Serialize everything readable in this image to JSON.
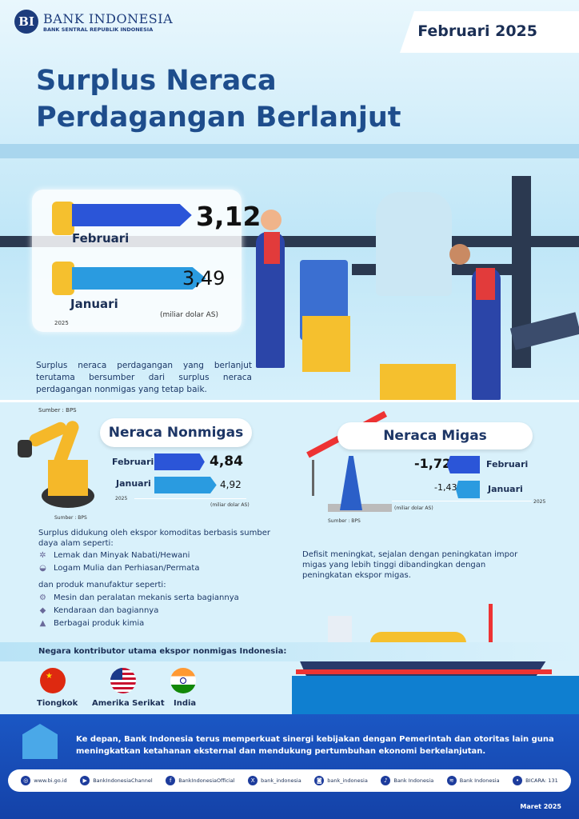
{
  "header": {
    "logo_name": "BANK INDONESIA",
    "logo_sub": "BANK SENTRAL REPUBLIK INDONESIA",
    "logo_mark": "BI",
    "period": "Februari 2025"
  },
  "title": {
    "line1": "Surplus Neraca",
    "line2": "Perdagangan Berlanjut"
  },
  "total": {
    "feb_label": "Februari",
    "feb_value": "3,12",
    "jan_label": "Januari",
    "jan_value": "3,49",
    "year": "2025",
    "unit": "(miliar dolar AS)",
    "values": {
      "feb": 3.12,
      "jan": 3.49
    }
  },
  "summary": "Surplus neraca perdagangan yang berlanjut terutama bersumber dari surplus neraca perdagangan nonmigas yang tetap baik.",
  "source_top": "Sumber : BPS",
  "nonmigas": {
    "title": "Neraca Nonmigas",
    "feb_label": "Februari",
    "feb_value": "4,84",
    "jan_label": "Januari",
    "jan_value": "4,92",
    "year": "2025",
    "unit": "(miliar dolar AS)",
    "source": "Sumber : BPS",
    "values": {
      "feb": 4.84,
      "jan": 4.92
    },
    "intro1": "Surplus didukung oleh ekspor komoditas berbasis sumber daya alam seperti:",
    "items1": [
      "Lemak dan Minyak Nabati/Hewani",
      "Logam Mulia dan Perhiasan/Permata"
    ],
    "intro2": "dan produk manufaktur seperti:",
    "items2": [
      "Mesin dan peralatan mekanis serta bagiannya",
      "Kendaraan dan bagiannya",
      "Berbagai produk kimia"
    ]
  },
  "migas": {
    "title": "Neraca Migas",
    "feb_label": "Februari",
    "feb_value": "-1,72",
    "jan_label": "Januari",
    "jan_value": "-1,43",
    "year": "2025",
    "unit": "(miliar dolar AS)",
    "source": "Sumber : BPS",
    "values": {
      "feb": -1.72,
      "jan": -1.43
    },
    "text": "Defisit meningkat, sejalan dengan peningkatan impor migas yang lebih tinggi dibandingkan dengan peningkatan ekspor migas."
  },
  "countries": {
    "heading": "Negara kontributor utama ekspor nonmigas Indonesia:",
    "list": [
      "Tiongkok",
      "Amerika Serikat",
      "India"
    ]
  },
  "footer": {
    "text": "Ke depan, Bank Indonesia terus memperkuat sinergi kebijakan dengan Pemerintah dan otoritas lain guna meningkatkan ketahanan eksternal dan mendukung pertumbuhan ekonomi berkelanjutan.",
    "social": [
      "www.bi.go.id",
      "BankIndonesiaChannel",
      "BankIndonesiaOfficial",
      "bank_indonesia",
      "bank_indonesia",
      "Bank Indonesia",
      "Bank Indonesia",
      "BICARA: 131"
    ],
    "date": "Maret 2025"
  },
  "colors": {
    "navy": "#1b2f55",
    "feb_bar": "#2b55d8",
    "jan_bar": "#2a9be0",
    "footer": "#1648b8"
  }
}
